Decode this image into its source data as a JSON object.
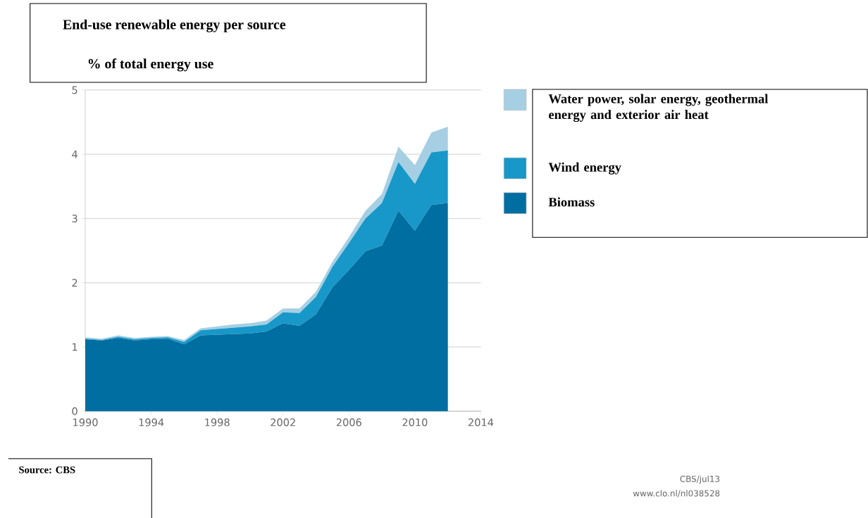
{
  "chart_data": {
    "type": "area",
    "title": "End-use renewable energy per source",
    "subtitle": "% of total energy use",
    "x": [
      1990,
      1991,
      1992,
      1993,
      1994,
      1995,
      1996,
      1997,
      1998,
      1999,
      2000,
      2001,
      2002,
      2003,
      2004,
      2005,
      2006,
      2007,
      2008,
      2009,
      2010,
      2011,
      2012
    ],
    "stacked": true,
    "series": [
      {
        "name": "Biomass",
        "color": "#006ea0",
        "values": [
          1.12,
          1.1,
          1.14,
          1.1,
          1.12,
          1.13,
          1.04,
          1.18,
          1.19,
          1.2,
          1.21,
          1.24,
          1.37,
          1.33,
          1.51,
          1.93,
          2.2,
          2.49,
          2.58,
          3.12,
          2.81,
          3.21,
          3.24
        ]
      },
      {
        "name": "Wind energy",
        "color": "#1798c8",
        "values": [
          0.01,
          0.01,
          0.02,
          0.02,
          0.02,
          0.02,
          0.04,
          0.08,
          0.09,
          0.1,
          0.11,
          0.11,
          0.17,
          0.2,
          0.27,
          0.32,
          0.42,
          0.51,
          0.66,
          0.76,
          0.73,
          0.82,
          0.82
        ]
      },
      {
        "name": "Water power, solar energy, geothermal energy and exterior air heat",
        "color": "#a6cfe3",
        "values": [
          0.02,
          0.02,
          0.02,
          0.02,
          0.02,
          0.02,
          0.03,
          0.03,
          0.04,
          0.05,
          0.05,
          0.06,
          0.06,
          0.07,
          0.08,
          0.08,
          0.09,
          0.12,
          0.14,
          0.24,
          0.29,
          0.31,
          0.37
        ]
      }
    ],
    "xlim": [
      1990,
      2014
    ],
    "xticks": [
      1990,
      1994,
      1998,
      2002,
      2006,
      2010,
      2014
    ],
    "ylim": [
      0,
      5
    ],
    "yticks": [
      0,
      1,
      2,
      3,
      4,
      5
    ],
    "grid": "y",
    "legend": "right",
    "annotations": [
      "Source: CBS",
      "CBS/jul13",
      "www.clo.nl/nl038528"
    ]
  }
}
